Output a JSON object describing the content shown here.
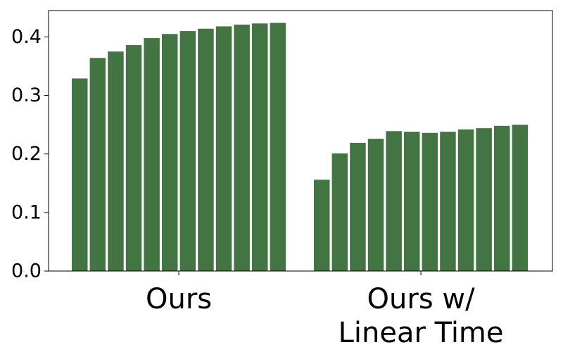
{
  "chart_data": {
    "type": "bar",
    "title": "",
    "xlabel": "",
    "ylabel": "",
    "ylim": [
      0,
      0.445
    ],
    "yticks": [
      "0.0",
      "0.1",
      "0.2",
      "0.3",
      "0.4"
    ],
    "grid": false,
    "bar_color": "#437543",
    "groups": [
      {
        "label_lines": [
          "Ours"
        ],
        "values": [
          0.329,
          0.364,
          0.375,
          0.386,
          0.398,
          0.405,
          0.41,
          0.414,
          0.418,
          0.421,
          0.423,
          0.424
        ]
      },
      {
        "label_lines": [
          "Ours w/",
          "Linear Time"
        ],
        "values": [
          0.156,
          0.201,
          0.219,
          0.226,
          0.239,
          0.238,
          0.236,
          0.238,
          0.242,
          0.244,
          0.248,
          0.25
        ]
      }
    ]
  }
}
